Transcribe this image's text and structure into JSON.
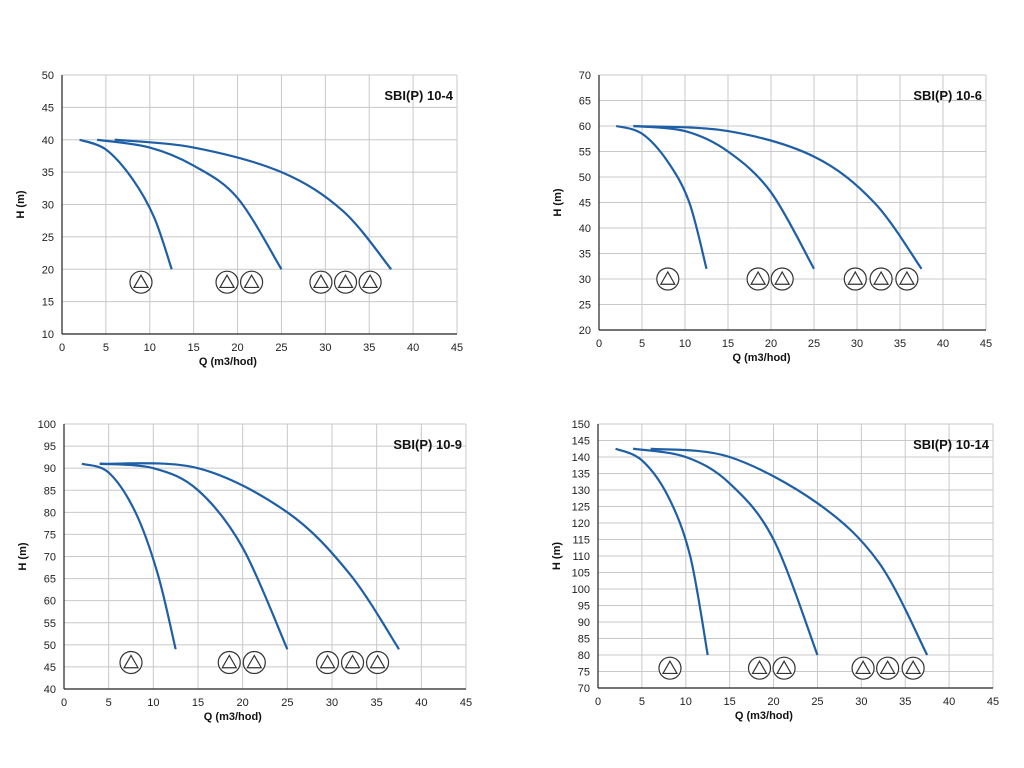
{
  "chart_data": [
    {
      "type": "line",
      "title": "SBI(P) 10-4",
      "xlabel": "Q (m3/hod)",
      "ylabel": "H (m)",
      "xlim": [
        0,
        45
      ],
      "ylim": [
        10,
        50
      ],
      "xticks": [
        0,
        5,
        10,
        15,
        20,
        25,
        30,
        35,
        40,
        45
      ],
      "yticks": [
        10,
        15,
        20,
        25,
        30,
        35,
        40,
        45,
        50
      ],
      "grid": true,
      "curve_color": "#1f5fa6",
      "series": [
        {
          "x": [
            2,
            5,
            8,
            10.5,
            12.5
          ],
          "y": [
            40,
            38.5,
            34,
            28,
            20
          ]
        },
        {
          "x": [
            4,
            10,
            15,
            20,
            25
          ],
          "y": [
            40,
            38.8,
            36,
            31,
            20
          ]
        },
        {
          "x": [
            6,
            15,
            25,
            32,
            37.5
          ],
          "y": [
            40,
            38.8,
            35,
            29,
            20
          ]
        }
      ],
      "pump_groups": [
        {
          "x": [
            9
          ],
          "y": 18
        },
        {
          "x": [
            18.8,
            21.6
          ],
          "y": 18
        },
        {
          "x": [
            29.5,
            32.3,
            35.1
          ],
          "y": 18
        }
      ]
    },
    {
      "type": "line",
      "title": "SBI(P) 10-6",
      "xlabel": "Q (m3/hod)",
      "ylabel": "H (m)",
      "xlim": [
        0,
        45
      ],
      "ylim": [
        20,
        70
      ],
      "xticks": [
        0,
        5,
        10,
        15,
        20,
        25,
        30,
        35,
        40,
        45
      ],
      "yticks": [
        20,
        25,
        30,
        35,
        40,
        45,
        50,
        55,
        60,
        65,
        70
      ],
      "grid": true,
      "curve_color": "#1f5fa6",
      "series": [
        {
          "x": [
            2,
            5,
            8,
            10.5,
            12.5
          ],
          "y": [
            60,
            58.5,
            53,
            45,
            32
          ]
        },
        {
          "x": [
            4,
            10,
            15,
            20,
            25
          ],
          "y": [
            60,
            59,
            55,
            47,
            32
          ]
        },
        {
          "x": [
            4,
            15,
            25,
            32,
            37.5
          ],
          "y": [
            60,
            59,
            54,
            45,
            32
          ]
        }
      ],
      "pump_groups": [
        {
          "x": [
            8
          ],
          "y": 30
        },
        {
          "x": [
            18.5,
            21.3
          ],
          "y": 30
        },
        {
          "x": [
            29.8,
            32.8,
            35.8
          ],
          "y": 30
        }
      ]
    },
    {
      "type": "line",
      "title": "SBI(P) 10-9",
      "xlabel": "Q (m3/hod)",
      "ylabel": "H (m)",
      "xlim": [
        0,
        45
      ],
      "ylim": [
        40,
        100
      ],
      "xticks": [
        0,
        5,
        10,
        15,
        20,
        25,
        30,
        35,
        40,
        45
      ],
      "yticks": [
        40,
        45,
        50,
        55,
        60,
        65,
        70,
        75,
        80,
        85,
        90,
        95,
        100
      ],
      "grid": true,
      "curve_color": "#1f5fa6",
      "series": [
        {
          "x": [
            2,
            5,
            8,
            10.5,
            12.5
          ],
          "y": [
            91,
            89,
            80,
            66,
            49
          ]
        },
        {
          "x": [
            4,
            10,
            15,
            20,
            25
          ],
          "y": [
            91,
            90,
            85,
            72,
            49
          ]
        },
        {
          "x": [
            4,
            15,
            25,
            32,
            37.5
          ],
          "y": [
            91,
            90,
            80,
            66,
            49
          ]
        }
      ],
      "pump_groups": [
        {
          "x": [
            7.5
          ],
          "y": 46
        },
        {
          "x": [
            18.5,
            21.3
          ],
          "y": 46
        },
        {
          "x": [
            29.5,
            32.3,
            35.1
          ],
          "y": 46
        }
      ]
    },
    {
      "type": "line",
      "title": "SBI(P) 10-14",
      "xlabel": "Q (m3/hod)",
      "ylabel": "H (m)",
      "xlim": [
        0,
        45
      ],
      "ylim": [
        70,
        150
      ],
      "xticks": [
        0,
        5,
        10,
        15,
        20,
        25,
        30,
        35,
        40,
        45
      ],
      "yticks": [
        70,
        75,
        80,
        85,
        90,
        95,
        100,
        105,
        110,
        115,
        120,
        125,
        130,
        135,
        140,
        145,
        150
      ],
      "grid": true,
      "curve_color": "#1f5fa6",
      "series": [
        {
          "x": [
            2,
            5,
            8,
            10.5,
            12.5
          ],
          "y": [
            142.5,
            139,
            128,
            110,
            80
          ]
        },
        {
          "x": [
            4,
            10,
            15,
            20,
            25
          ],
          "y": [
            142.5,
            140,
            132,
            115,
            80
          ]
        },
        {
          "x": [
            6,
            15,
            25,
            32,
            37.5
          ],
          "y": [
            142.5,
            140,
            126,
            108,
            80
          ]
        }
      ],
      "pump_groups": [
        {
          "x": [
            8.2
          ],
          "y": 76
        },
        {
          "x": [
            18.4,
            21.2
          ],
          "y": 76
        },
        {
          "x": [
            30.2,
            33,
            35.9
          ],
          "y": 76
        }
      ]
    }
  ]
}
